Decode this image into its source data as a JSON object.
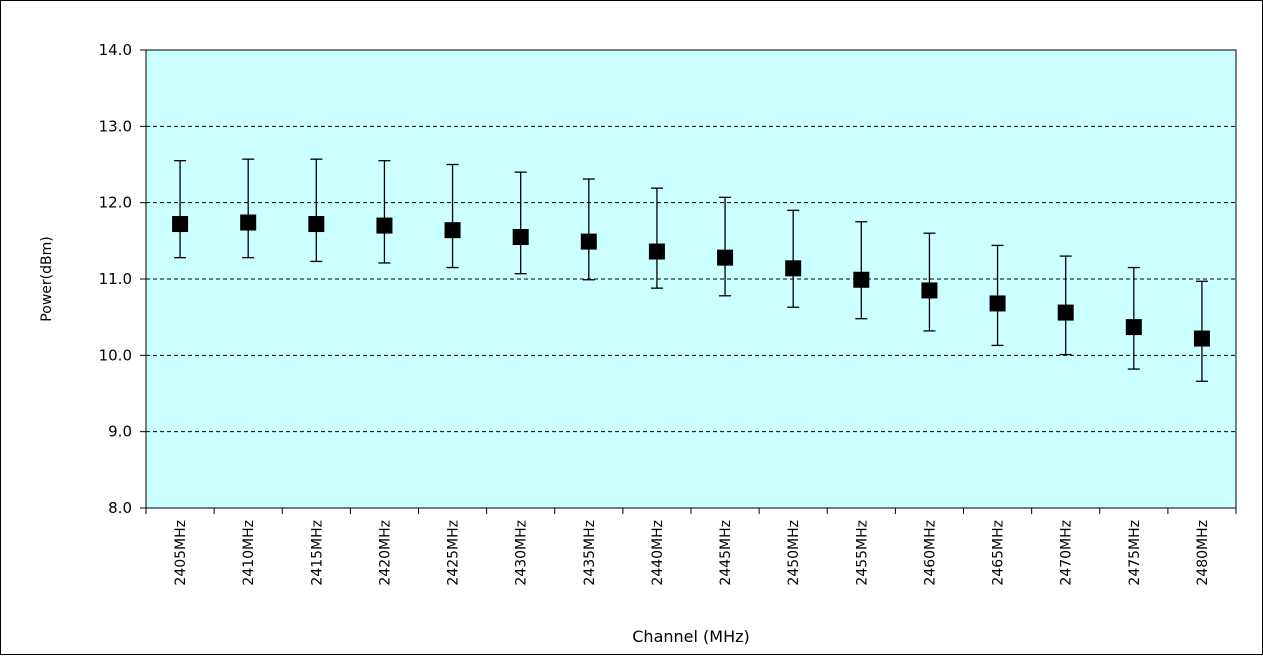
{
  "chart_data": {
    "type": "scatter",
    "title": "",
    "xlabel": "Channel (MHz)",
    "ylabel": "Power(dBm)",
    "ylim": [
      8.0,
      14.0
    ],
    "yticks": [
      "8.0",
      "9.0",
      "10.0",
      "11.0",
      "12.0",
      "13.0",
      "14.0"
    ],
    "grid": "horizontal dashed",
    "legend": "none",
    "categories": [
      "2405MHz",
      "2410MHz",
      "2415MHz",
      "2420MHz",
      "2425MHz",
      "2430MHz",
      "2435MHz",
      "2440MHz",
      "2445MHz",
      "2450MHz",
      "2455MHz",
      "2460MHz",
      "2465MHz",
      "2470MHz",
      "2475MHz",
      "2480MHz"
    ],
    "series": [
      {
        "values": [
          11.72,
          11.74,
          11.72,
          11.7,
          11.64,
          11.55,
          11.49,
          11.36,
          11.28,
          11.14,
          10.99,
          10.85,
          10.68,
          10.56,
          10.37,
          10.22
        ],
        "upper": [
          12.55,
          12.57,
          12.57,
          12.55,
          12.5,
          12.4,
          12.31,
          12.19,
          12.07,
          11.9,
          11.75,
          11.6,
          11.44,
          11.3,
          11.15,
          10.97
        ],
        "lower": [
          11.28,
          11.28,
          11.23,
          11.21,
          11.15,
          11.07,
          10.99,
          10.88,
          10.78,
          10.63,
          10.48,
          10.32,
          10.13,
          10.01,
          9.82,
          9.66
        ]
      }
    ],
    "colors": {
      "plot_background": "#ccffff",
      "marker": "#000000",
      "gridline": "#000000"
    }
  }
}
